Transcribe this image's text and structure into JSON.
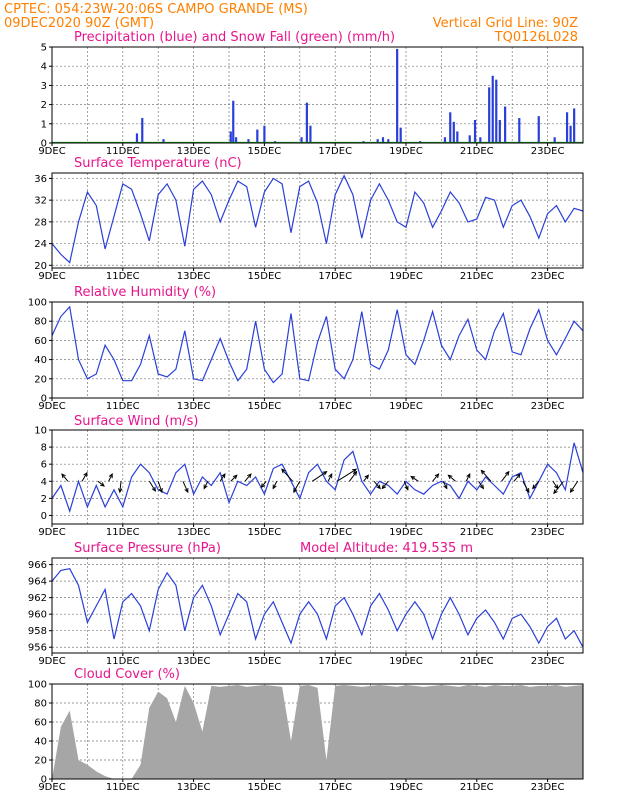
{
  "header": {
    "line1": "CPTEC:  054:23W-20:06S  CAMPO GRANDE (MS)",
    "line2_left": "09DEC2020 90Z (GMT)",
    "line2_right": "Vertical Grid Line: 90Z",
    "code": "TQ0126L028"
  },
  "colors": {
    "header": "#ff8000",
    "title": "#e8148c",
    "series": "#2a3fd8",
    "snow": "#1a9a1a",
    "cloud": "#a6a6a6",
    "grid": "#7a7a7a"
  },
  "x_labels": [
    "9DEC",
    "11DEC",
    "13DEC",
    "15DEC",
    "17DEC",
    "19DEC",
    "21DEC",
    "23DEC"
  ],
  "chart_data": [
    {
      "id": "precip",
      "type": "bar",
      "title": "Precipitation (blue) and Snow Fall (green) (mm/h)",
      "ylim": [
        0,
        5
      ],
      "yticks": [
        0,
        1,
        2,
        3,
        4,
        5
      ],
      "xlim": [
        9,
        24
      ],
      "series": [
        {
          "name": "Precipitation",
          "color": "#2a3fd8",
          "points": [
            [
              11.4,
              0.5
            ],
            [
              11.55,
              1.3
            ],
            [
              12.15,
              0.2
            ],
            [
              14.05,
              0.6
            ],
            [
              14.12,
              2.2
            ],
            [
              14.2,
              0.3
            ],
            [
              14.55,
              0.2
            ],
            [
              14.8,
              0.7
            ],
            [
              15.0,
              0.9
            ],
            [
              15.3,
              0.1
            ],
            [
              16.05,
              0.3
            ],
            [
              16.2,
              2.1
            ],
            [
              16.3,
              0.9
            ],
            [
              17.8,
              0.1
            ],
            [
              18.2,
              0.2
            ],
            [
              18.35,
              0.3
            ],
            [
              18.5,
              0.2
            ],
            [
              18.75,
              4.9
            ],
            [
              18.85,
              0.8
            ],
            [
              19.4,
              0.1
            ],
            [
              20.1,
              0.3
            ],
            [
              20.25,
              1.6
            ],
            [
              20.35,
              1.1
            ],
            [
              20.45,
              0.6
            ],
            [
              20.8,
              0.4
            ],
            [
              20.95,
              1.2
            ],
            [
              21.1,
              0.3
            ],
            [
              21.35,
              2.9
            ],
            [
              21.45,
              3.5
            ],
            [
              21.55,
              3.3
            ],
            [
              21.65,
              1.2
            ],
            [
              21.8,
              1.9
            ],
            [
              22.2,
              1.3
            ],
            [
              22.75,
              1.4
            ],
            [
              23.2,
              0.3
            ],
            [
              23.55,
              1.6
            ],
            [
              23.65,
              0.9
            ],
            [
              23.75,
              1.8
            ]
          ]
        },
        {
          "name": "Snow Fall",
          "color": "#1a9a1a",
          "points": []
        }
      ]
    },
    {
      "id": "temp",
      "type": "line",
      "title": "Surface Temperature (nC)",
      "ylim": [
        19.5,
        37
      ],
      "yticks": [
        20,
        24,
        28,
        32,
        36
      ],
      "xlim": [
        9,
        24
      ],
      "x": [
        9.0,
        9.25,
        9.5,
        9.75,
        10.0,
        10.25,
        10.5,
        10.75,
        11.0,
        11.25,
        11.5,
        11.75,
        12.0,
        12.25,
        12.5,
        12.75,
        13.0,
        13.25,
        13.5,
        13.75,
        14.0,
        14.25,
        14.5,
        14.75,
        15.0,
        15.25,
        15.5,
        15.75,
        16.0,
        16.25,
        16.5,
        16.75,
        17.0,
        17.25,
        17.5,
        17.75,
        18.0,
        18.25,
        18.5,
        18.75,
        19.0,
        19.25,
        19.5,
        19.75,
        20.0,
        20.25,
        20.5,
        20.75,
        21.0,
        21.25,
        21.5,
        21.75,
        22.0,
        22.25,
        22.5,
        22.75,
        23.0,
        23.25,
        23.5,
        23.75,
        24.0
      ],
      "y": [
        24,
        22,
        20.5,
        28,
        33.5,
        31,
        23,
        29,
        35,
        34,
        29.5,
        24.5,
        33,
        35,
        32,
        23.5,
        34,
        35.5,
        33,
        28,
        32,
        35.5,
        34.5,
        27,
        33.5,
        36,
        35,
        26,
        34.5,
        35.5,
        31.5,
        24,
        33,
        36.5,
        33,
        25,
        32,
        35,
        32,
        28,
        27,
        33.5,
        31.5,
        27,
        30,
        33.5,
        31.5,
        28,
        28.5,
        32.5,
        32,
        27,
        31,
        32,
        29,
        25,
        29.5,
        31,
        28,
        30.5,
        30
      ]
    },
    {
      "id": "rh",
      "type": "line",
      "title": "Relative Humidity (%)",
      "ylim": [
        0,
        100
      ],
      "yticks": [
        0,
        20,
        40,
        60,
        80,
        100
      ],
      "xlim": [
        9,
        24
      ],
      "x": [
        9.0,
        9.25,
        9.5,
        9.75,
        10.0,
        10.25,
        10.5,
        10.75,
        11.0,
        11.25,
        11.5,
        11.75,
        12.0,
        12.25,
        12.5,
        12.75,
        13.0,
        13.25,
        13.5,
        13.75,
        14.0,
        14.25,
        14.5,
        14.75,
        15.0,
        15.25,
        15.5,
        15.75,
        16.0,
        16.25,
        16.5,
        16.75,
        17.0,
        17.25,
        17.5,
        17.75,
        18.0,
        18.25,
        18.5,
        18.75,
        19.0,
        19.25,
        19.5,
        19.75,
        20.0,
        20.25,
        20.5,
        20.75,
        21.0,
        21.25,
        21.5,
        21.75,
        22.0,
        22.25,
        22.5,
        22.75,
        23.0,
        23.25,
        23.5,
        23.75,
        24.0
      ],
      "y": [
        65,
        85,
        95,
        40,
        20,
        25,
        55,
        40,
        18,
        18,
        35,
        65,
        25,
        22,
        30,
        70,
        20,
        18,
        40,
        62,
        38,
        18,
        30,
        80,
        30,
        16,
        25,
        88,
        20,
        18,
        58,
        85,
        30,
        20,
        40,
        90,
        35,
        30,
        50,
        92,
        45,
        35,
        60,
        90,
        55,
        40,
        65,
        82,
        50,
        40,
        70,
        88,
        48,
        45,
        72,
        92,
        60,
        45,
        62,
        80,
        70
      ]
    },
    {
      "id": "wind",
      "type": "line",
      "title": "Surface Wind (m/s)",
      "ylim": [
        -1,
        10
      ],
      "yticks": [
        0,
        2,
        4,
        6,
        8,
        10
      ],
      "xlim": [
        9,
        24
      ],
      "x": [
        9.0,
        9.25,
        9.5,
        9.75,
        10.0,
        10.25,
        10.5,
        10.75,
        11.0,
        11.25,
        11.5,
        11.75,
        12.0,
        12.25,
        12.5,
        12.75,
        13.0,
        13.25,
        13.5,
        13.75,
        14.0,
        14.25,
        14.5,
        14.75,
        15.0,
        15.25,
        15.5,
        15.75,
        16.0,
        16.25,
        16.5,
        16.75,
        17.0,
        17.25,
        17.5,
        17.75,
        18.0,
        18.25,
        18.5,
        18.75,
        19.0,
        19.25,
        19.5,
        19.75,
        20.0,
        20.25,
        20.5,
        20.75,
        21.0,
        21.25,
        21.5,
        21.75,
        22.0,
        22.25,
        22.5,
        22.75,
        23.0,
        23.25,
        23.5,
        23.75,
        24.0
      ],
      "y": [
        2,
        3.5,
        0.5,
        4,
        1,
        3.5,
        1,
        3,
        1,
        4.5,
        6,
        5,
        3,
        2.5,
        5,
        6,
        2.5,
        4.5,
        3.5,
        5,
        1.5,
        4,
        3.5,
        4.5,
        2.5,
        5.5,
        6,
        4,
        2,
        5,
        6,
        4,
        3,
        6.5,
        7.5,
        4,
        2.5,
        4,
        3.5,
        2.5,
        4,
        3,
        2.5,
        3.5,
        4,
        3.5,
        2,
        4,
        3,
        4.5,
        3.5,
        2.5,
        4.5,
        5,
        2,
        4,
        6,
        5,
        3,
        8.5,
        5
      ],
      "arrows": [
        {
          "x": 9.45,
          "u": -0.5,
          "v": 0.6
        },
        {
          "x": 9.85,
          "u": 0.4,
          "v": 0.7
        },
        {
          "x": 10.3,
          "u": 0.5,
          "v": -0.4
        },
        {
          "x": 10.6,
          "u": 0.3,
          "v": 0.6
        },
        {
          "x": 10.95,
          "u": -0.1,
          "v": -0.9
        },
        {
          "x": 11.75,
          "u": 0.5,
          "v": -0.8
        },
        {
          "x": 12.0,
          "u": 0.3,
          "v": -0.9
        },
        {
          "x": 12.7,
          "u": 0.4,
          "v": -0.9
        },
        {
          "x": 13.4,
          "u": -0.3,
          "v": -0.6
        },
        {
          "x": 13.75,
          "u": 0.4,
          "v": 0.6
        },
        {
          "x": 14.05,
          "u": 0.5,
          "v": 0.5
        },
        {
          "x": 14.45,
          "u": 0.5,
          "v": 0.6
        },
        {
          "x": 15.05,
          "u": -0.4,
          "v": -0.5
        },
        {
          "x": 15.35,
          "u": -0.3,
          "v": -0.6
        },
        {
          "x": 15.8,
          "u": -0.9,
          "v": 1.0
        },
        {
          "x": 16.0,
          "u": -0.5,
          "v": -0.9
        },
        {
          "x": 16.35,
          "u": 1.2,
          "v": 0.8
        },
        {
          "x": 16.8,
          "u": 0.3,
          "v": 0.6
        },
        {
          "x": 17.05,
          "u": 1.6,
          "v": 1.0
        },
        {
          "x": 17.4,
          "u": 0.6,
          "v": 0.8
        },
        {
          "x": 17.8,
          "u": 0.4,
          "v": 0.5
        },
        {
          "x": 18.1,
          "u": 0.5,
          "v": -0.6
        },
        {
          "x": 18.5,
          "u": -0.5,
          "v": -0.6
        },
        {
          "x": 18.95,
          "u": 0.3,
          "v": -0.7
        },
        {
          "x": 19.35,
          "u": -0.6,
          "v": 0.4
        },
        {
          "x": 19.75,
          "u": 0.5,
          "v": 0.6
        },
        {
          "x": 20.05,
          "u": 0.3,
          "v": -0.6
        },
        {
          "x": 20.4,
          "u": -0.6,
          "v": 0.5
        },
        {
          "x": 20.7,
          "u": 0.3,
          "v": 0.6
        },
        {
          "x": 21.05,
          "u": 0.4,
          "v": -0.6
        },
        {
          "x": 21.4,
          "u": -0.8,
          "v": 0.9
        },
        {
          "x": 21.7,
          "u": 0.6,
          "v": 0.8
        },
        {
          "x": 22.05,
          "u": 0.5,
          "v": 0.6
        },
        {
          "x": 22.3,
          "u": 0.5,
          "v": -0.9
        },
        {
          "x": 22.75,
          "u": -0.5,
          "v": -0.6
        },
        {
          "x": 23.15,
          "u": 0.4,
          "v": -0.6
        },
        {
          "x": 23.45,
          "u": -0.8,
          "v": -1.0
        },
        {
          "x": 23.85,
          "u": -0.6,
          "v": -0.9
        }
      ]
    },
    {
      "id": "pres",
      "type": "line",
      "title": "Surface Pressure (hPa)",
      "annotation": "Model Altitude: 419.535  m",
      "ylim": [
        955.3,
        966.8
      ],
      "yticks": [
        956,
        958,
        960,
        962,
        964,
        966
      ],
      "xlim": [
        9,
        24
      ],
      "x": [
        9.0,
        9.25,
        9.5,
        9.75,
        10.0,
        10.25,
        10.5,
        10.75,
        11.0,
        11.25,
        11.5,
        11.75,
        12.0,
        12.25,
        12.5,
        12.75,
        13.0,
        13.25,
        13.5,
        13.75,
        14.0,
        14.25,
        14.5,
        14.75,
        15.0,
        15.25,
        15.5,
        15.75,
        16.0,
        16.25,
        16.5,
        16.75,
        17.0,
        17.25,
        17.5,
        17.75,
        18.0,
        18.25,
        18.5,
        18.75,
        19.0,
        19.25,
        19.5,
        19.75,
        20.0,
        20.25,
        20.5,
        20.75,
        21.0,
        21.25,
        21.5,
        21.75,
        22.0,
        22.25,
        22.5,
        22.75,
        23.0,
        23.25,
        23.5,
        23.75,
        24.0
      ],
      "y": [
        964,
        965.3,
        965.5,
        963.5,
        959,
        961,
        963,
        957,
        961.5,
        962.5,
        961,
        958,
        963,
        965,
        963.5,
        958,
        962,
        963.5,
        961,
        957.5,
        960,
        962.5,
        961.5,
        957,
        960,
        961.5,
        959,
        956.5,
        960,
        961.5,
        960,
        957,
        961,
        962,
        960,
        957.5,
        961,
        962.5,
        960.5,
        958,
        960,
        961.5,
        960,
        957,
        960,
        962,
        960,
        957.5,
        959.5,
        960.5,
        959,
        957,
        959.5,
        960,
        958.5,
        956.5,
        958.5,
        959.5,
        957,
        958,
        956
      ]
    },
    {
      "id": "cloud",
      "type": "area",
      "title": "Cloud Cover (%)",
      "ylim": [
        0,
        100
      ],
      "yticks": [
        0,
        20,
        40,
        60,
        80,
        100
      ],
      "xlim": [
        9,
        24
      ],
      "x": [
        9.0,
        9.25,
        9.5,
        9.75,
        10.0,
        10.25,
        10.5,
        10.75,
        11.0,
        11.25,
        11.5,
        11.75,
        12.0,
        12.25,
        12.5,
        12.75,
        13.0,
        13.25,
        13.5,
        13.75,
        14.0,
        14.25,
        14.5,
        14.75,
        15.0,
        15.25,
        15.5,
        15.75,
        16.0,
        16.25,
        16.5,
        16.75,
        17.0,
        17.25,
        17.5,
        17.75,
        18.0,
        18.25,
        18.5,
        18.75,
        19.0,
        19.25,
        19.5,
        19.75,
        20.0,
        20.25,
        20.5,
        20.75,
        21.0,
        21.25,
        21.5,
        21.75,
        22.0,
        22.25,
        22.5,
        22.75,
        23.0,
        23.25,
        23.5,
        23.75,
        24.0
      ],
      "y": [
        0,
        55,
        72,
        20,
        15,
        8,
        3,
        0,
        0,
        0,
        15,
        75,
        92,
        85,
        60,
        98,
        80,
        50,
        98,
        97,
        98,
        99,
        97,
        98,
        99,
        98,
        97,
        40,
        98,
        99,
        96,
        20,
        98,
        99,
        98,
        97,
        98,
        99,
        98,
        97,
        99,
        98,
        97,
        98,
        99,
        98,
        97,
        99,
        98,
        97,
        99,
        98,
        98,
        99,
        97,
        98,
        98,
        99,
        97,
        98,
        99
      ]
    }
  ]
}
